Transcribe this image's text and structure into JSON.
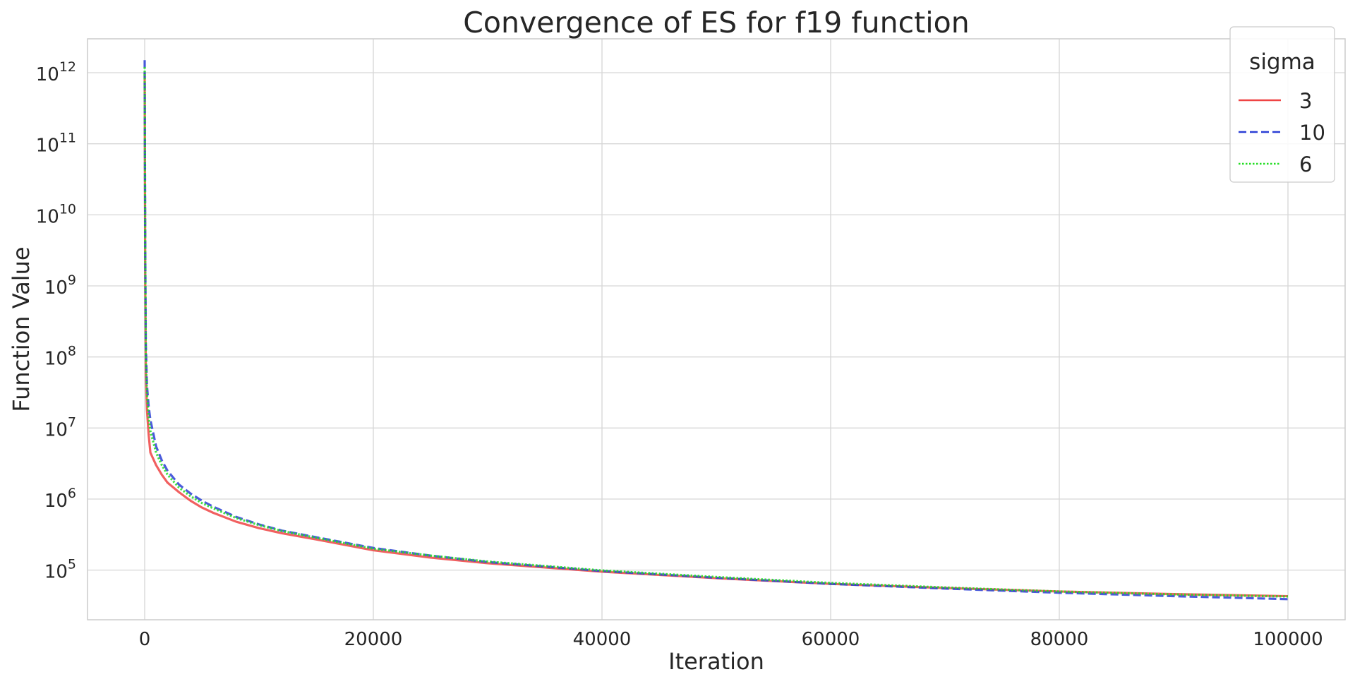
{
  "chart_data": {
    "type": "line",
    "title": "Convergence of ES for f19 function",
    "xlabel": "Iteration",
    "ylabel": "Function Value",
    "yscale": "log",
    "xlim": [
      -5000,
      105000
    ],
    "ylim": [
      20000,
      3000000000000
    ],
    "xticks": [
      0,
      20000,
      40000,
      60000,
      80000,
      100000
    ],
    "xtick_labels": [
      "0",
      "20000",
      "40000",
      "60000",
      "80000",
      "100000"
    ],
    "yticks": [
      100000,
      1000000,
      10000000,
      100000000,
      1000000000,
      10000000000,
      100000000000,
      1000000000000
    ],
    "ytick_labels": [
      {
        "base": "10",
        "exp": "5"
      },
      {
        "base": "10",
        "exp": "6"
      },
      {
        "base": "10",
        "exp": "7"
      },
      {
        "base": "10",
        "exp": "8"
      },
      {
        "base": "10",
        "exp": "9"
      },
      {
        "base": "10",
        "exp": "10"
      },
      {
        "base": "10",
        "exp": "11"
      },
      {
        "base": "10",
        "exp": "12"
      }
    ],
    "grid": true,
    "legend": {
      "title": "sigma",
      "position": "top-right"
    },
    "series": [
      {
        "name": "3",
        "color": "#ef4444",
        "dash": "solid",
        "x": [
          0,
          20,
          50,
          100,
          200,
          350,
          500,
          1000,
          1500,
          2000,
          3000,
          4000,
          5000,
          6000,
          8000,
          10000,
          12000,
          15000,
          20000,
          25000,
          30000,
          40000,
          50000,
          60000,
          70000,
          80000,
          90000,
          100000
        ],
        "y": [
          1000000000000,
          50000000000,
          1000000000,
          60000000,
          18000000,
          8000000,
          4500000,
          3000000,
          2200000,
          1700000,
          1250000,
          950000,
          760000,
          640000,
          480000,
          390000,
          330000,
          270000,
          190000,
          150000,
          125000,
          95000,
          77000,
          64000,
          56000,
          50000,
          46000,
          43000
        ]
      },
      {
        "name": "10",
        "color": "#2b3fd6",
        "dash": "dashed",
        "x": [
          0,
          20,
          50,
          100,
          200,
          350,
          500,
          1000,
          1500,
          2000,
          3000,
          4000,
          5000,
          6000,
          8000,
          10000,
          12000,
          15000,
          20000,
          25000,
          30000,
          40000,
          50000,
          60000,
          70000,
          80000,
          90000,
          100000
        ],
        "y": [
          1500000000000,
          100000000000,
          3000000000,
          150000000,
          40000000,
          20000000,
          13000000,
          5500000,
          3500000,
          2500000,
          1600000,
          1200000,
          950000,
          780000,
          560000,
          440000,
          360000,
          290000,
          205000,
          160000,
          130000,
          97000,
          78000,
          64000,
          55000,
          48000,
          43000,
          39000
        ]
      },
      {
        "name": "6",
        "color": "#22dd22",
        "dash": "dotted",
        "x": [
          0,
          20,
          50,
          100,
          200,
          350,
          500,
          1000,
          1500,
          2000,
          3000,
          4000,
          5000,
          6000,
          8000,
          10000,
          12000,
          15000,
          20000,
          25000,
          30000,
          40000,
          50000,
          60000,
          70000,
          80000,
          90000,
          100000
        ],
        "y": [
          1200000000000,
          80000000000,
          2000000000,
          100000000,
          30000000,
          14000000,
          9000000,
          4500000,
          3000000,
          2200000,
          1450000,
          1100000,
          880000,
          740000,
          540000,
          430000,
          355000,
          285000,
          200000,
          160000,
          132000,
          99000,
          80000,
          66000,
          57000,
          50000,
          45500,
          42500
        ]
      }
    ]
  }
}
